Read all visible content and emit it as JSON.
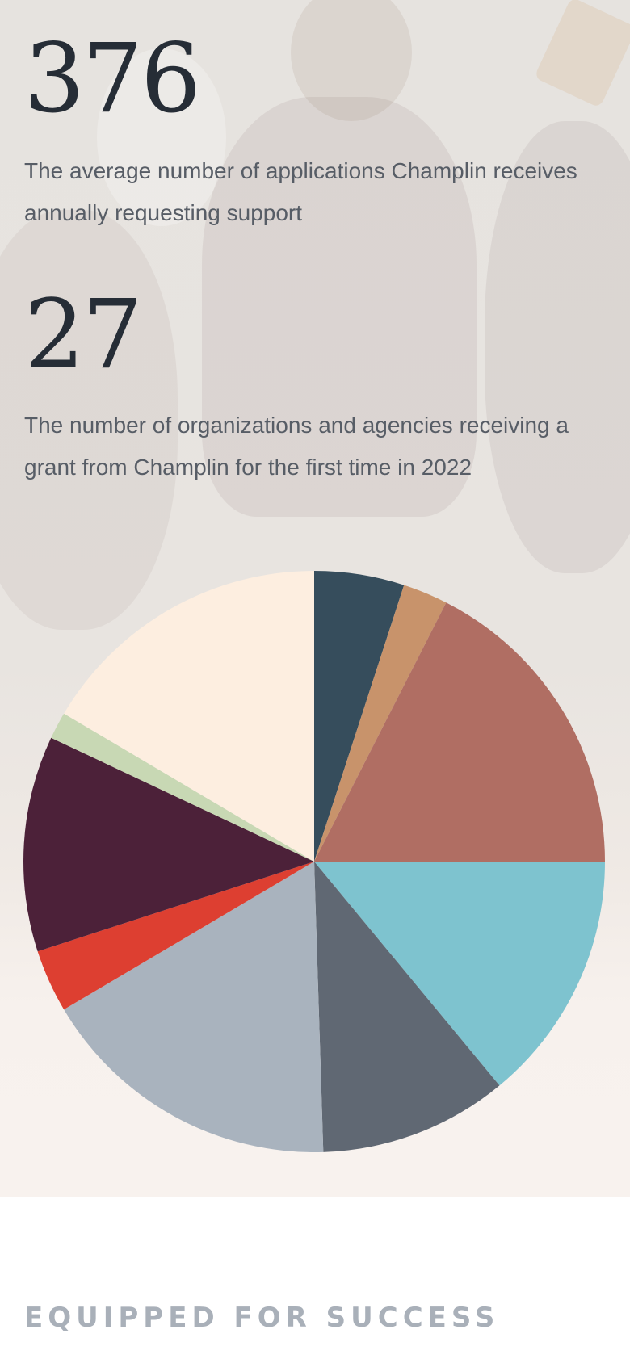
{
  "stats": [
    {
      "number": "376",
      "description": "The average number of applications Champlin receives annually requesting support"
    },
    {
      "number": "27",
      "description": "The number of organizations and agencies receiving a grant from Champlin for the first time in 2022"
    }
  ],
  "chart_data": {
    "type": "pie",
    "start": "12 o'clock, clockwise",
    "legend": "none",
    "slices": [
      {
        "value": 5.0,
        "color": "#364d5c"
      },
      {
        "value": 2.5,
        "color": "#c8936b"
      },
      {
        "value": 17.5,
        "color": "#b06e63"
      },
      {
        "value": 14.0,
        "color": "#7ec3cf"
      },
      {
        "value": 10.5,
        "color": "#606873"
      },
      {
        "value": 17.0,
        "color": "#a9b3be"
      },
      {
        "value": 3.5,
        "color": "#dd3f31"
      },
      {
        "value": 12.0,
        "color": "#4c2139"
      },
      {
        "value": 1.5,
        "color": "#c8d8b4"
      },
      {
        "value": 16.5,
        "color": "#fdeee0"
      }
    ]
  },
  "section": {
    "heading": "EQUIPPED FOR SUCCESS"
  }
}
